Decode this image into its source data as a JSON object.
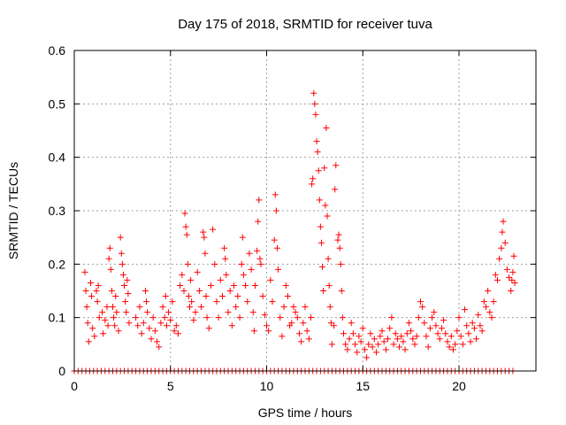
{
  "chart_data": {
    "type": "scatter",
    "title": "Day 175 of 2018, SRMTID for receiver tuva",
    "xlabel": "GPS time / hours",
    "ylabel": "SRMTID / TECUs",
    "xlim": [
      0,
      24
    ],
    "ylim": [
      0,
      0.6
    ],
    "x_ticks": [
      0,
      5,
      10,
      15,
      20
    ],
    "x_tick_labels": [
      "0",
      "5",
      "10",
      "15",
      "20"
    ],
    "y_ticks": [
      0,
      0.1,
      0.2,
      0.3,
      0.4,
      0.5,
      0.6
    ],
    "y_tick_labels": [
      "0",
      "0.1",
      "0.2",
      "0.3",
      "0.4",
      "0.5",
      "0.6"
    ],
    "grid": true,
    "marker": "plus",
    "color": "#ff0000",
    "zero_band": {
      "x_range": [
        0.0,
        22.9
      ],
      "y": 0
    },
    "series": [
      {
        "name": "SRMTID",
        "points": [
          [
            0.55,
            0.185
          ],
          [
            0.6,
            0.15
          ],
          [
            0.65,
            0.12
          ],
          [
            0.7,
            0.09
          ],
          [
            0.75,
            0.055
          ],
          [
            0.85,
            0.165
          ],
          [
            0.9,
            0.14
          ],
          [
            0.95,
            0.08
          ],
          [
            1.05,
            0.065
          ],
          [
            1.15,
            0.15
          ],
          [
            1.2,
            0.13
          ],
          [
            1.25,
            0.16
          ],
          [
            1.3,
            0.1
          ],
          [
            1.45,
            0.11
          ],
          [
            1.5,
            0.07
          ],
          [
            1.6,
            0.095
          ],
          [
            1.7,
            0.12
          ],
          [
            1.75,
            0.085
          ],
          [
            1.8,
            0.21
          ],
          [
            1.85,
            0.23
          ],
          [
            1.9,
            0.19
          ],
          [
            1.95,
            0.15
          ],
          [
            2.0,
            0.12
          ],
          [
            2.05,
            0.1
          ],
          [
            2.1,
            0.085
          ],
          [
            2.15,
            0.14
          ],
          [
            2.2,
            0.11
          ],
          [
            2.3,
            0.075
          ],
          [
            2.4,
            0.25
          ],
          [
            2.45,
            0.22
          ],
          [
            2.5,
            0.2
          ],
          [
            2.55,
            0.18
          ],
          [
            2.6,
            0.16
          ],
          [
            2.65,
            0.13
          ],
          [
            2.7,
            0.11
          ],
          [
            2.75,
            0.17
          ],
          [
            2.8,
            0.145
          ],
          [
            2.85,
            0.09
          ],
          [
            3.2,
            0.1
          ],
          [
            3.3,
            0.085
          ],
          [
            3.4,
            0.12
          ],
          [
            3.5,
            0.07
          ],
          [
            3.6,
            0.09
          ],
          [
            3.7,
            0.15
          ],
          [
            3.75,
            0.13
          ],
          [
            3.8,
            0.11
          ],
          [
            3.9,
            0.08
          ],
          [
            4.0,
            0.06
          ],
          [
            4.1,
            0.1
          ],
          [
            4.2,
            0.075
          ],
          [
            4.3,
            0.055
          ],
          [
            4.4,
            0.045
          ],
          [
            4.5,
            0.09
          ],
          [
            4.6,
            0.12
          ],
          [
            4.7,
            0.1
          ],
          [
            4.75,
            0.14
          ],
          [
            4.8,
            0.085
          ],
          [
            4.9,
            0.11
          ],
          [
            5.0,
            0.095
          ],
          [
            5.1,
            0.13
          ],
          [
            5.2,
            0.075
          ],
          [
            5.3,
            0.085
          ],
          [
            5.4,
            0.07
          ],
          [
            5.5,
            0.16
          ],
          [
            5.6,
            0.18
          ],
          [
            5.7,
            0.15
          ],
          [
            5.75,
            0.295
          ],
          [
            5.8,
            0.27
          ],
          [
            5.85,
            0.255
          ],
          [
            5.9,
            0.2
          ],
          [
            5.95,
            0.14
          ],
          [
            6.0,
            0.12
          ],
          [
            6.05,
            0.17
          ],
          [
            6.1,
            0.13
          ],
          [
            6.2,
            0.095
          ],
          [
            6.3,
            0.11
          ],
          [
            6.4,
            0.185
          ],
          [
            6.5,
            0.15
          ],
          [
            6.6,
            0.12
          ],
          [
            6.7,
            0.26
          ],
          [
            6.75,
            0.25
          ],
          [
            6.8,
            0.22
          ],
          [
            6.85,
            0.14
          ],
          [
            6.9,
            0.1
          ],
          [
            7.0,
            0.08
          ],
          [
            7.1,
            0.16
          ],
          [
            7.2,
            0.265
          ],
          [
            7.3,
            0.2
          ],
          [
            7.4,
            0.13
          ],
          [
            7.5,
            0.1
          ],
          [
            7.6,
            0.17
          ],
          [
            7.7,
            0.14
          ],
          [
            7.8,
            0.23
          ],
          [
            7.85,
            0.21
          ],
          [
            7.9,
            0.18
          ],
          [
            8.0,
            0.11
          ],
          [
            8.1,
            0.15
          ],
          [
            8.2,
            0.085
          ],
          [
            8.3,
            0.16
          ],
          [
            8.4,
            0.12
          ],
          [
            8.5,
            0.14
          ],
          [
            8.6,
            0.1
          ],
          [
            8.7,
            0.2
          ],
          [
            8.75,
            0.25
          ],
          [
            8.8,
            0.18
          ],
          [
            8.9,
            0.16
          ],
          [
            9.0,
            0.13
          ],
          [
            9.1,
            0.22
          ],
          [
            9.2,
            0.19
          ],
          [
            9.3,
            0.11
          ],
          [
            9.35,
            0.075
          ],
          [
            9.4,
            0.16
          ],
          [
            9.5,
            0.225
          ],
          [
            9.55,
            0.28
          ],
          [
            9.6,
            0.32
          ],
          [
            9.65,
            0.21
          ],
          [
            9.7,
            0.2
          ],
          [
            9.8,
            0.14
          ],
          [
            9.9,
            0.105
          ],
          [
            10.0,
            0.085
          ],
          [
            10.1,
            0.075
          ],
          [
            10.2,
            0.17
          ],
          [
            10.3,
            0.13
          ],
          [
            10.4,
            0.245
          ],
          [
            10.45,
            0.33
          ],
          [
            10.5,
            0.3
          ],
          [
            10.55,
            0.23
          ],
          [
            10.6,
            0.19
          ],
          [
            10.7,
            0.1
          ],
          [
            10.8,
            0.065
          ],
          [
            10.9,
            0.12
          ],
          [
            11.0,
            0.16
          ],
          [
            11.1,
            0.14
          ],
          [
            11.2,
            0.085
          ],
          [
            11.3,
            0.09
          ],
          [
            11.4,
            0.12
          ],
          [
            11.5,
            0.11
          ],
          [
            11.6,
            0.1
          ],
          [
            11.7,
            0.07
          ],
          [
            11.8,
            0.055
          ],
          [
            11.9,
            0.09
          ],
          [
            12.0,
            0.12
          ],
          [
            12.1,
            0.075
          ],
          [
            12.2,
            0.06
          ],
          [
            12.3,
            0.1
          ],
          [
            12.35,
            0.35
          ],
          [
            12.4,
            0.36
          ],
          [
            12.45,
            0.52
          ],
          [
            12.5,
            0.5
          ],
          [
            12.55,
            0.48
          ],
          [
            12.6,
            0.43
          ],
          [
            12.65,
            0.41
          ],
          [
            12.7,
            0.375
          ],
          [
            12.75,
            0.32
          ],
          [
            12.8,
            0.27
          ],
          [
            12.85,
            0.24
          ],
          [
            12.9,
            0.195
          ],
          [
            12.95,
            0.15
          ],
          [
            13.0,
            0.38
          ],
          [
            13.05,
            0.31
          ],
          [
            13.1,
            0.455
          ],
          [
            13.15,
            0.29
          ],
          [
            13.2,
            0.21
          ],
          [
            13.25,
            0.16
          ],
          [
            13.3,
            0.12
          ],
          [
            13.35,
            0.09
          ],
          [
            13.4,
            0.05
          ],
          [
            13.5,
            0.085
          ],
          [
            13.55,
            0.34
          ],
          [
            13.6,
            0.385
          ],
          [
            13.7,
            0.245
          ],
          [
            13.75,
            0.255
          ],
          [
            13.8,
            0.23
          ],
          [
            13.85,
            0.2
          ],
          [
            13.9,
            0.15
          ],
          [
            13.95,
            0.1
          ],
          [
            14.0,
            0.07
          ],
          [
            14.1,
            0.05
          ],
          [
            14.2,
            0.04
          ],
          [
            14.3,
            0.06
          ],
          [
            14.4,
            0.09
          ],
          [
            14.5,
            0.07
          ],
          [
            14.6,
            0.05
          ],
          [
            14.7,
            0.035
          ],
          [
            14.8,
            0.065
          ],
          [
            14.9,
            0.055
          ],
          [
            15.0,
            0.08
          ],
          [
            15.1,
            0.04
          ],
          [
            15.2,
            0.025
          ],
          [
            15.3,
            0.05
          ],
          [
            15.4,
            0.07
          ],
          [
            15.5,
            0.045
          ],
          [
            15.6,
            0.06
          ],
          [
            15.7,
            0.035
          ],
          [
            15.8,
            0.05
          ],
          [
            15.9,
            0.065
          ],
          [
            16.0,
            0.075
          ],
          [
            16.1,
            0.055
          ],
          [
            16.2,
            0.04
          ],
          [
            16.3,
            0.06
          ],
          [
            16.4,
            0.08
          ],
          [
            16.5,
            0.1
          ],
          [
            16.6,
            0.05
          ],
          [
            16.7,
            0.07
          ],
          [
            16.8,
            0.06
          ],
          [
            16.9,
            0.045
          ],
          [
            17.0,
            0.065
          ],
          [
            17.1,
            0.055
          ],
          [
            17.2,
            0.04
          ],
          [
            17.3,
            0.07
          ],
          [
            17.4,
            0.09
          ],
          [
            17.5,
            0.075
          ],
          [
            17.6,
            0.06
          ],
          [
            17.7,
            0.05
          ],
          [
            17.8,
            0.065
          ],
          [
            17.9,
            0.1
          ],
          [
            18.0,
            0.13
          ],
          [
            18.1,
            0.12
          ],
          [
            18.2,
            0.09
          ],
          [
            18.3,
            0.065
          ],
          [
            18.4,
            0.045
          ],
          [
            18.5,
            0.08
          ],
          [
            18.6,
            0.1
          ],
          [
            18.7,
            0.11
          ],
          [
            18.8,
            0.085
          ],
          [
            18.9,
            0.07
          ],
          [
            19.0,
            0.06
          ],
          [
            19.1,
            0.08
          ],
          [
            19.2,
            0.095
          ],
          [
            19.3,
            0.07
          ],
          [
            19.4,
            0.055
          ],
          [
            19.5,
            0.045
          ],
          [
            19.6,
            0.065
          ],
          [
            19.7,
            0.04
          ],
          [
            19.8,
            0.05
          ],
          [
            19.9,
            0.075
          ],
          [
            20.0,
            0.1
          ],
          [
            20.1,
            0.065
          ],
          [
            20.2,
            0.05
          ],
          [
            20.3,
            0.115
          ],
          [
            20.4,
            0.085
          ],
          [
            20.5,
            0.07
          ],
          [
            20.6,
            0.055
          ],
          [
            20.7,
            0.09
          ],
          [
            20.8,
            0.08
          ],
          [
            20.9,
            0.06
          ],
          [
            21.0,
            0.105
          ],
          [
            21.1,
            0.085
          ],
          [
            21.2,
            0.075
          ],
          [
            21.3,
            0.13
          ],
          [
            21.4,
            0.12
          ],
          [
            21.5,
            0.15
          ],
          [
            21.6,
            0.11
          ],
          [
            21.7,
            0.1
          ],
          [
            21.8,
            0.13
          ],
          [
            21.9,
            0.18
          ],
          [
            22.0,
            0.17
          ],
          [
            22.1,
            0.21
          ],
          [
            22.2,
            0.23
          ],
          [
            22.25,
            0.26
          ],
          [
            22.3,
            0.28
          ],
          [
            22.4,
            0.24
          ],
          [
            22.5,
            0.19
          ],
          [
            22.6,
            0.175
          ],
          [
            22.7,
            0.15
          ],
          [
            22.75,
            0.17
          ],
          [
            22.8,
            0.185
          ],
          [
            22.85,
            0.215
          ],
          [
            22.9,
            0.165
          ]
        ]
      }
    ]
  }
}
